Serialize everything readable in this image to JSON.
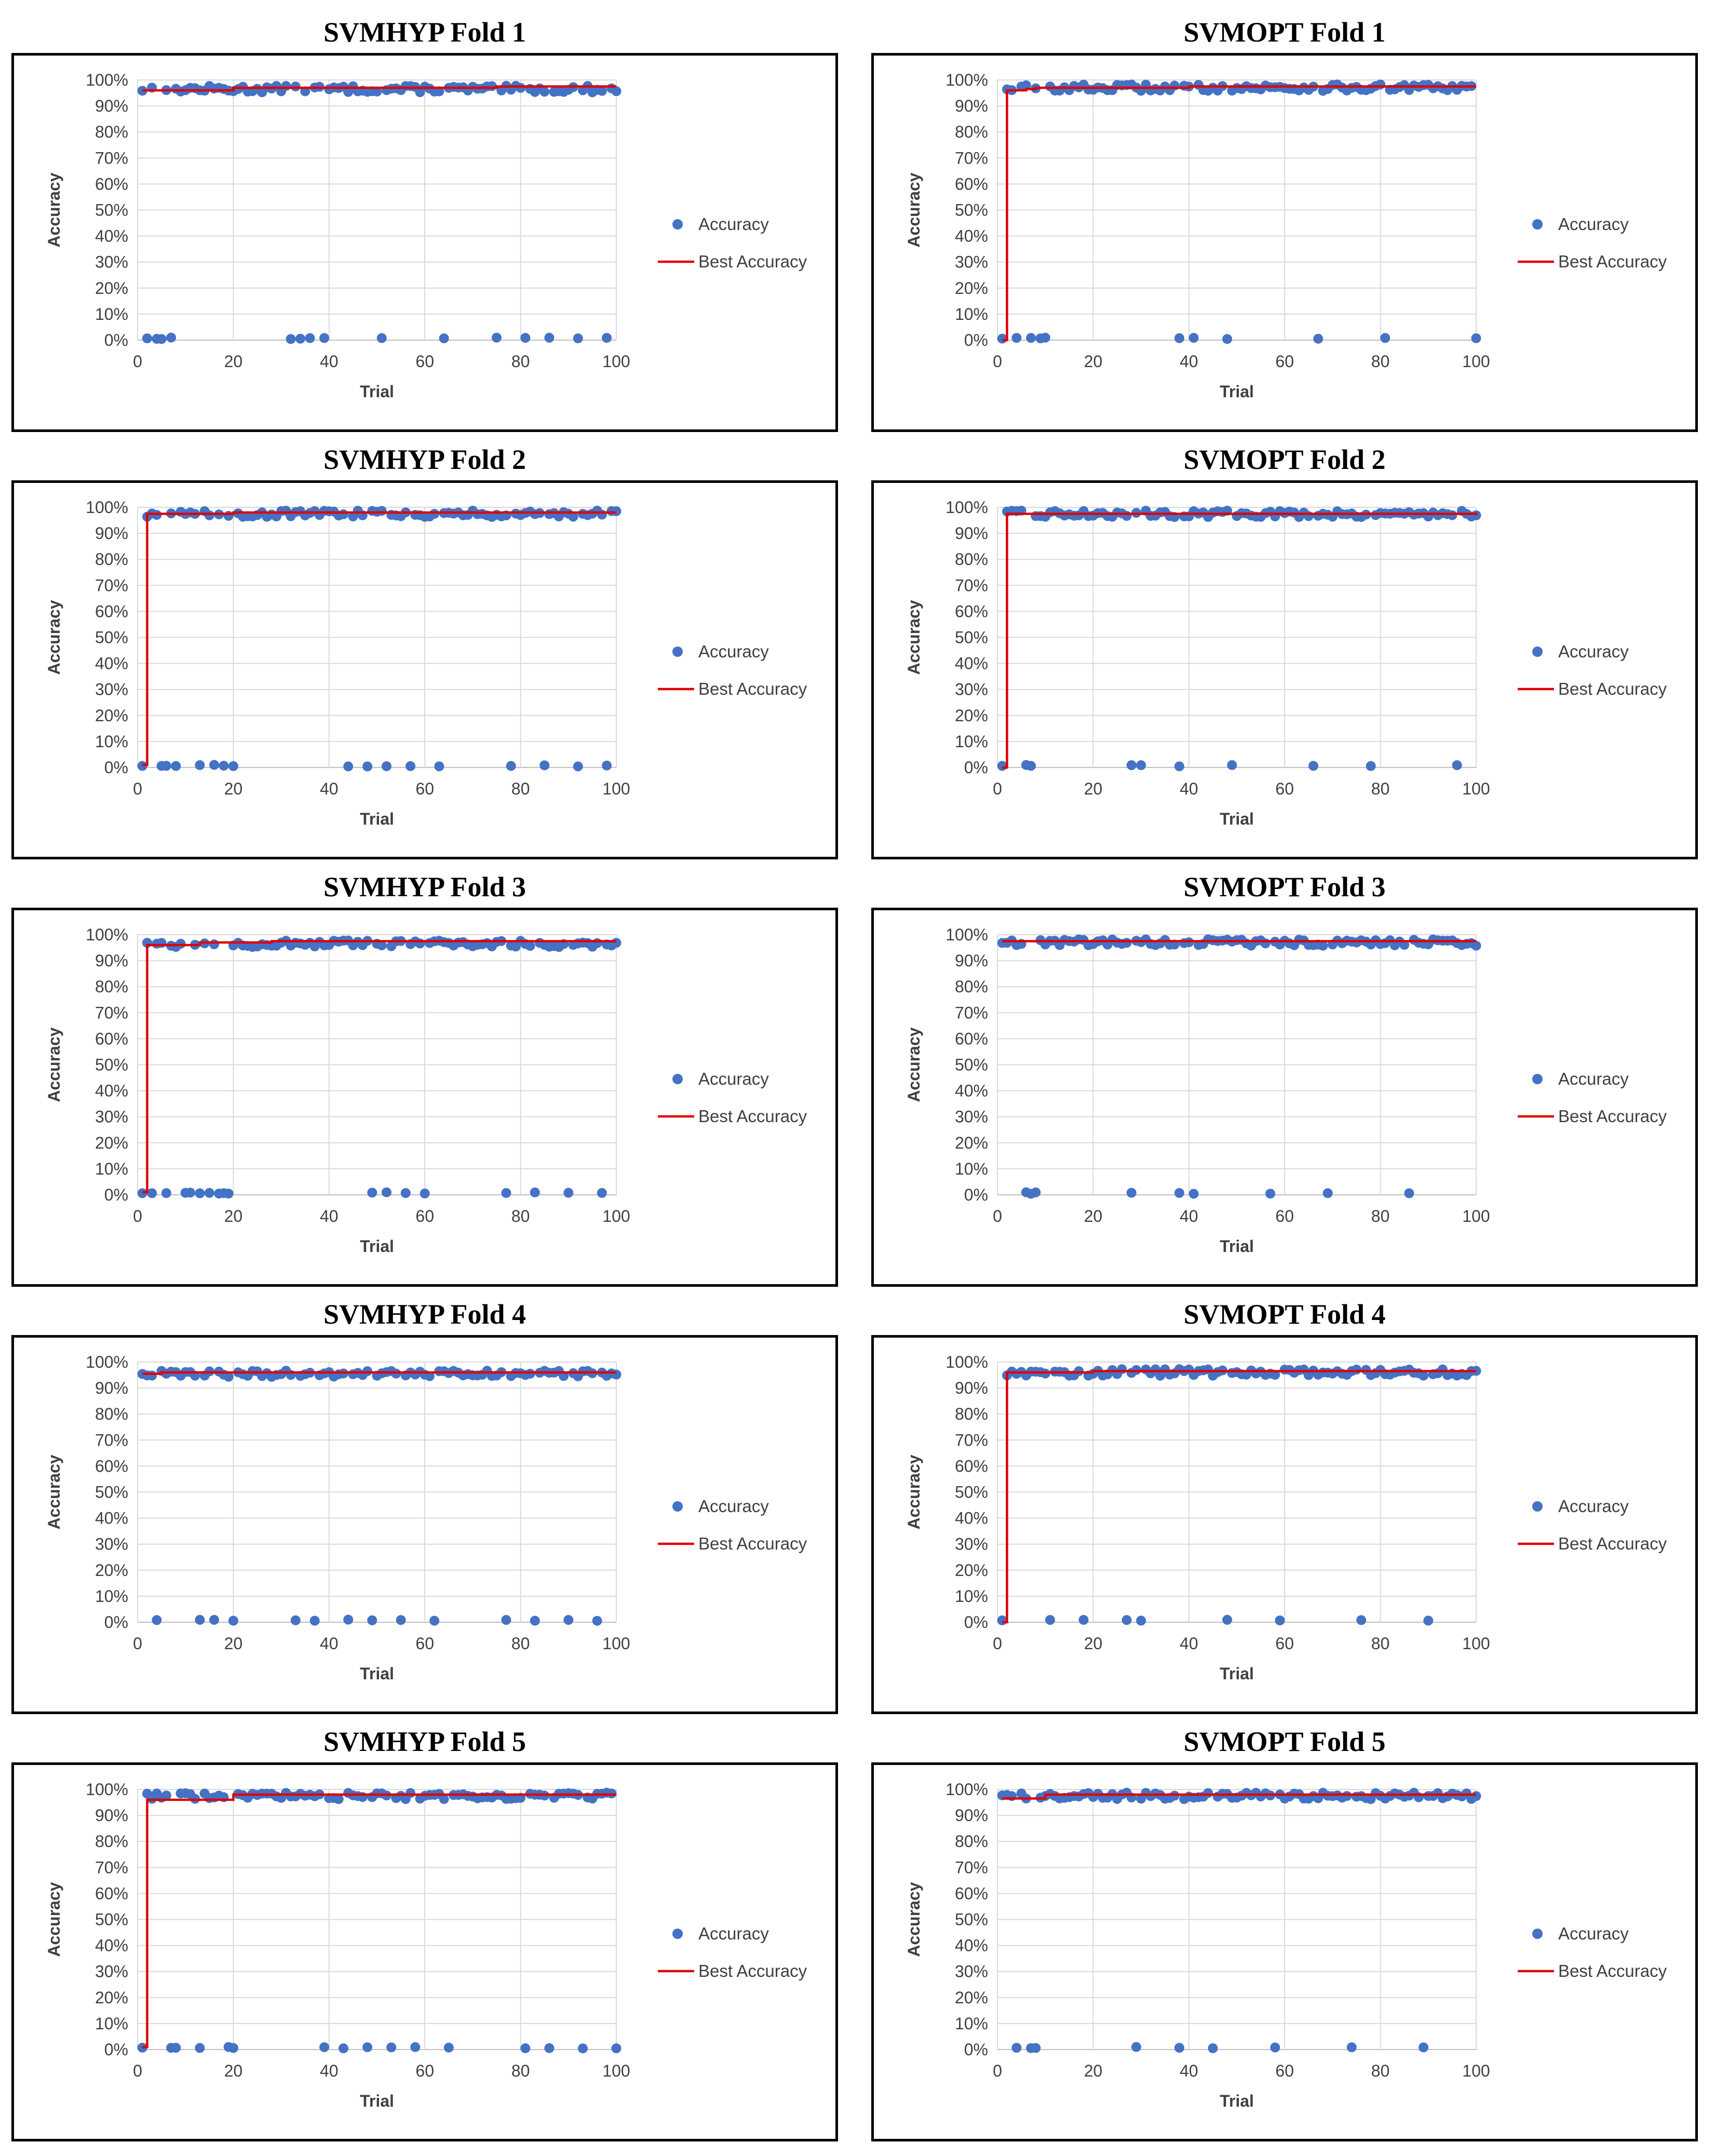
{
  "colors": {
    "accuracy_marker": "#4472C4",
    "best_line": "#E00000",
    "grid": "#D9D9D9",
    "text": "#404040"
  },
  "chart_data": [
    {
      "type": "scatter",
      "title": "SVMHYP Fold 1",
      "xlabel": "Trial",
      "ylabel": "Accuracy",
      "xlim": [
        0,
        100
      ],
      "ylim": [
        0,
        1
      ],
      "xticks": [
        "0",
        "20",
        "40",
        "60",
        "80",
        "100"
      ],
      "yticks": [
        "0%",
        "10%",
        "20%",
        "30%",
        "40%",
        "50%",
        "60%",
        "70%",
        "80%",
        "90%",
        "100%"
      ],
      "grid": true,
      "legend_position": "right",
      "series": [
        {
          "name": "Accuracy",
          "style": "markers",
          "high_mean": 0.965,
          "high_trials": "all",
          "zero_trials": [
            2,
            4,
            5,
            7,
            32,
            34,
            36,
            39,
            51,
            64,
            75,
            81,
            86,
            92,
            98
          ]
        },
        {
          "name": "Best Accuracy",
          "style": "line",
          "points": [
            [
              1,
              0.96
            ],
            [
              20,
              0.97
            ],
            [
              75,
              0.975
            ],
            [
              100,
              0.975
            ]
          ]
        }
      ]
    },
    {
      "type": "scatter",
      "title": "SVMOPT Fold 1",
      "xlabel": "Trial",
      "ylabel": "Accuracy",
      "xlim": [
        0,
        100
      ],
      "ylim": [
        0,
        1
      ],
      "xticks": [
        "0",
        "20",
        "40",
        "60",
        "80",
        "100"
      ],
      "yticks": [
        "0%",
        "10%",
        "20%",
        "30%",
        "40%",
        "50%",
        "60%",
        "70%",
        "80%",
        "90%",
        "100%"
      ],
      "grid": true,
      "legend_position": "right",
      "series": [
        {
          "name": "Accuracy",
          "style": "markers",
          "high_mean": 0.97,
          "high_trials": "all",
          "zero_trials": [
            1,
            4,
            7,
            9,
            10,
            38,
            41,
            48,
            67,
            81,
            100
          ]
        },
        {
          "name": "Best Accuracy",
          "style": "line",
          "points": [
            [
              1,
              0.0
            ],
            [
              2,
              0.96
            ],
            [
              6,
              0.965
            ],
            [
              8,
              0.97
            ],
            [
              40,
              0.975
            ],
            [
              100,
              0.975
            ]
          ]
        }
      ]
    },
    {
      "type": "scatter",
      "title": "SVMHYP Fold 2",
      "xlabel": "Trial",
      "ylabel": "Accuracy",
      "xlim": [
        0,
        100
      ],
      "ylim": [
        0,
        1
      ],
      "xticks": [
        "0",
        "20",
        "40",
        "60",
        "80",
        "100"
      ],
      "yticks": [
        "0%",
        "10%",
        "20%",
        "30%",
        "40%",
        "50%",
        "60%",
        "70%",
        "80%",
        "90%",
        "100%"
      ],
      "grid": true,
      "legend_position": "right",
      "series": [
        {
          "name": "Accuracy",
          "style": "markers",
          "high_mean": 0.975,
          "high_trials": "all",
          "zero_trials": [
            1,
            5,
            6,
            8,
            13,
            16,
            18,
            20,
            44,
            48,
            52,
            57,
            63,
            78,
            85,
            92,
            98
          ]
        },
        {
          "name": "Best Accuracy",
          "style": "line",
          "points": [
            [
              1,
              0.01
            ],
            [
              2,
              0.975
            ],
            [
              20,
              0.98
            ],
            [
              100,
              0.98
            ]
          ]
        }
      ]
    },
    {
      "type": "scatter",
      "title": "SVMOPT Fold 2",
      "xlabel": "Trial",
      "ylabel": "Accuracy",
      "xlim": [
        0,
        100
      ],
      "ylim": [
        0,
        1
      ],
      "xticks": [
        "0",
        "20",
        "40",
        "60",
        "80",
        "100"
      ],
      "yticks": [
        "0%",
        "10%",
        "20%",
        "30%",
        "40%",
        "50%",
        "60%",
        "70%",
        "80%",
        "90%",
        "100%"
      ],
      "grid": true,
      "legend_position": "right",
      "series": [
        {
          "name": "Accuracy",
          "style": "markers",
          "high_mean": 0.975,
          "high_trials": "all",
          "zero_trials": [
            1,
            6,
            7,
            28,
            30,
            38,
            49,
            66,
            78,
            96
          ]
        },
        {
          "name": "Best Accuracy",
          "style": "line",
          "points": [
            [
              1,
              0.0
            ],
            [
              2,
              0.975
            ],
            [
              100,
              0.98
            ]
          ]
        }
      ]
    },
    {
      "type": "scatter",
      "title": "SVMHYP Fold 3",
      "xlabel": "Trial",
      "ylabel": "Accuracy",
      "xlim": [
        0,
        100
      ],
      "ylim": [
        0,
        1
      ],
      "xticks": [
        "0",
        "20",
        "40",
        "60",
        "80",
        "100"
      ],
      "yticks": [
        "0%",
        "10%",
        "20%",
        "30%",
        "40%",
        "50%",
        "60%",
        "70%",
        "80%",
        "90%",
        "100%"
      ],
      "grid": true,
      "legend_position": "right",
      "series": [
        {
          "name": "Accuracy",
          "style": "markers",
          "high_mean": 0.965,
          "high_trials": "all",
          "zero_trials": [
            1,
            3,
            6,
            10,
            11,
            13,
            15,
            17,
            18,
            19,
            49,
            52,
            56,
            60,
            77,
            83,
            90,
            97
          ]
        },
        {
          "name": "Best Accuracy",
          "style": "line",
          "points": [
            [
              1,
              0.01
            ],
            [
              2,
              0.96
            ],
            [
              13,
              0.97
            ],
            [
              28,
              0.975
            ],
            [
              100,
              0.975
            ]
          ]
        }
      ]
    },
    {
      "type": "scatter",
      "title": "SVMOPT Fold 3",
      "xlabel": "Trial",
      "ylabel": "Accuracy",
      "xlim": [
        0,
        100
      ],
      "ylim": [
        0,
        1
      ],
      "xticks": [
        "0",
        "20",
        "40",
        "60",
        "80",
        "100"
      ],
      "yticks": [
        "0%",
        "10%",
        "20%",
        "30%",
        "40%",
        "50%",
        "60%",
        "70%",
        "80%",
        "90%",
        "100%"
      ],
      "grid": true,
      "legend_position": "right",
      "series": [
        {
          "name": "Accuracy",
          "style": "markers",
          "high_mean": 0.97,
          "high_trials": "all",
          "zero_trials": [
            6,
            7,
            8,
            28,
            38,
            41,
            57,
            69,
            86
          ]
        },
        {
          "name": "Best Accuracy",
          "style": "line",
          "points": [
            [
              1,
              0.975
            ],
            [
              100,
              0.975
            ]
          ]
        }
      ]
    },
    {
      "type": "scatter",
      "title": "SVMHYP Fold 4",
      "xlabel": "Trial",
      "ylabel": "Accuracy",
      "xlim": [
        0,
        100
      ],
      "ylim": [
        0,
        1
      ],
      "xticks": [
        "0",
        "20",
        "40",
        "60",
        "80",
        "100"
      ],
      "yticks": [
        "0%",
        "10%",
        "20%",
        "30%",
        "40%",
        "50%",
        "60%",
        "70%",
        "80%",
        "90%",
        "100%"
      ],
      "grid": true,
      "legend_position": "right",
      "series": [
        {
          "name": "Accuracy",
          "style": "markers",
          "high_mean": 0.955,
          "high_trials": "all",
          "zero_trials": [
            4,
            13,
            16,
            20,
            33,
            37,
            44,
            49,
            55,
            62,
            77,
            83,
            90,
            96
          ]
        },
        {
          "name": "Best Accuracy",
          "style": "line",
          "points": [
            [
              1,
              0.955
            ],
            [
              5,
              0.96
            ],
            [
              100,
              0.96
            ]
          ]
        }
      ]
    },
    {
      "type": "scatter",
      "title": "SVMOPT Fold 4",
      "xlabel": "Trial",
      "ylabel": "Accuracy",
      "xlim": [
        0,
        100
      ],
      "ylim": [
        0,
        1
      ],
      "xticks": [
        "0",
        "20",
        "40",
        "60",
        "80",
        "100"
      ],
      "yticks": [
        "0%",
        "10%",
        "20%",
        "30%",
        "40%",
        "50%",
        "60%",
        "70%",
        "80%",
        "90%",
        "100%"
      ],
      "grid": true,
      "legend_position": "right",
      "series": [
        {
          "name": "Accuracy",
          "style": "markers",
          "high_mean": 0.96,
          "high_trials": "all",
          "zero_trials": [
            1,
            11,
            18,
            27,
            30,
            48,
            59,
            76,
            90
          ]
        },
        {
          "name": "Best Accuracy",
          "style": "line",
          "points": [
            [
              1,
              0.0
            ],
            [
              2,
              0.96
            ],
            [
              20,
              0.965
            ],
            [
              100,
              0.965
            ]
          ]
        }
      ]
    },
    {
      "type": "scatter",
      "title": "SVMHYP Fold 5",
      "xlabel": "Trial",
      "ylabel": "Accuracy",
      "xlim": [
        0,
        100
      ],
      "ylim": [
        0,
        1
      ],
      "xticks": [
        "0",
        "20",
        "40",
        "60",
        "80",
        "100"
      ],
      "yticks": [
        "0%",
        "10%",
        "20%",
        "30%",
        "40%",
        "50%",
        "60%",
        "70%",
        "80%",
        "90%",
        "100%"
      ],
      "grid": true,
      "legend_position": "right",
      "series": [
        {
          "name": "Accuracy",
          "style": "markers",
          "high_mean": 0.975,
          "high_trials": "all",
          "zero_trials": [
            1,
            7,
            8,
            13,
            19,
            20,
            39,
            43,
            48,
            53,
            58,
            65,
            81,
            86,
            93,
            100
          ]
        },
        {
          "name": "Best Accuracy",
          "style": "line",
          "points": [
            [
              1,
              0.01
            ],
            [
              2,
              0.96
            ],
            [
              20,
              0.98
            ],
            [
              100,
              0.98
            ]
          ]
        }
      ]
    },
    {
      "type": "scatter",
      "title": "SVMOPT Fold 5",
      "xlabel": "Trial",
      "ylabel": "Accuracy",
      "xlim": [
        0,
        100
      ],
      "ylim": [
        0,
        1
      ],
      "xticks": [
        "0",
        "20",
        "40",
        "60",
        "80",
        "100"
      ],
      "yticks": [
        "0%",
        "10%",
        "20%",
        "30%",
        "40%",
        "50%",
        "60%",
        "70%",
        "80%",
        "90%",
        "100%"
      ],
      "grid": true,
      "legend_position": "right",
      "series": [
        {
          "name": "Accuracy",
          "style": "markers",
          "high_mean": 0.975,
          "high_trials": "all",
          "zero_trials": [
            4,
            7,
            8,
            29,
            38,
            45,
            58,
            74,
            89
          ]
        },
        {
          "name": "Best Accuracy",
          "style": "line",
          "points": [
            [
              1,
              0.965
            ],
            [
              10,
              0.98
            ],
            [
              100,
              0.98
            ]
          ]
        }
      ]
    }
  ]
}
